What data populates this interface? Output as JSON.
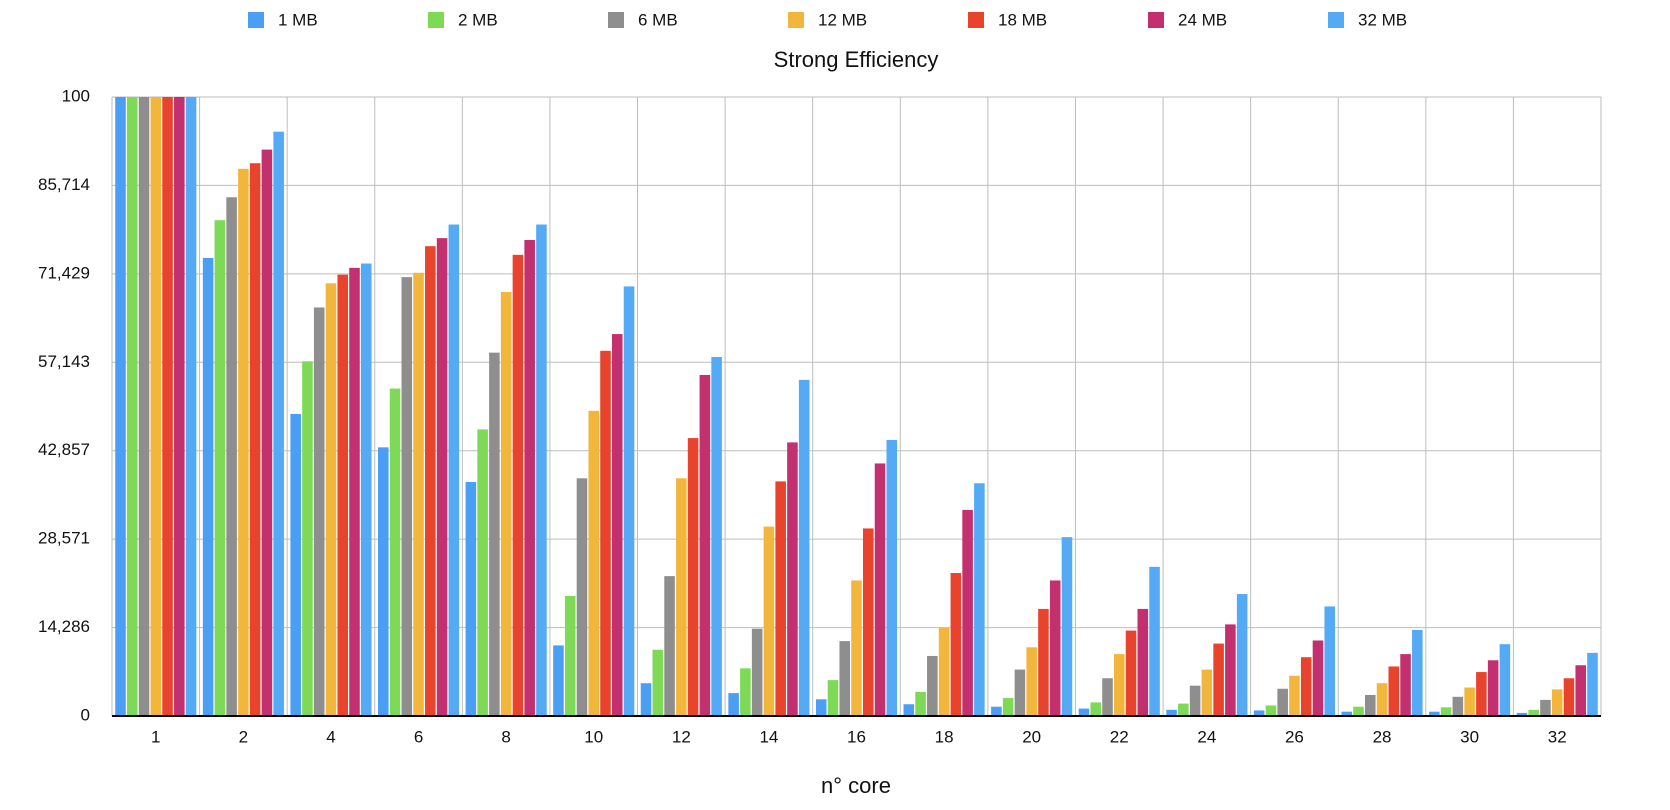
{
  "chart_data": {
    "type": "bar",
    "title": "Strong Efficiency",
    "x_label": "n° core",
    "categories": [
      "1",
      "2",
      "4",
      "6",
      "8",
      "10",
      "12",
      "14",
      "16",
      "18",
      "20",
      "22",
      "24",
      "26",
      "28",
      "30",
      "32"
    ],
    "series": [
      {
        "name": "1 MB",
        "color": "#4a9ff5",
        "values": [
          100,
          74.0,
          48.8,
          43.4,
          37.8,
          11.4,
          5.3,
          3.7,
          2.7,
          1.9,
          1.5,
          1.2,
          1.0,
          0.9,
          0.7,
          0.7,
          0.5
        ]
      },
      {
        "name": "2 MB",
        "color": "#7ed957",
        "values": [
          100,
          80.1,
          57.3,
          52.9,
          46.3,
          19.4,
          10.7,
          7.7,
          5.8,
          3.9,
          2.9,
          2.2,
          2.0,
          1.7,
          1.5,
          1.4,
          1.0
        ]
      },
      {
        "name": "6 MB",
        "color": "#8e8e8e",
        "values": [
          100,
          83.8,
          66.0,
          70.9,
          58.7,
          38.4,
          22.6,
          14.1,
          12.1,
          9.7,
          7.5,
          6.1,
          4.9,
          4.4,
          3.4,
          3.1,
          2.6
        ]
      },
      {
        "name": "12 MB",
        "color": "#f2b63d",
        "values": [
          100,
          88.4,
          69.9,
          71.6,
          68.5,
          49.3,
          38.4,
          30.6,
          21.9,
          14.3,
          11.1,
          10.0,
          7.5,
          6.5,
          5.3,
          4.6,
          4.3
        ]
      },
      {
        "name": "18 MB",
        "color": "#e8432d",
        "values": [
          100,
          89.3,
          71.3,
          75.9,
          74.5,
          59.0,
          44.9,
          37.9,
          30.3,
          23.1,
          17.3,
          13.8,
          11.7,
          9.5,
          8.0,
          7.1,
          6.1
        ]
      },
      {
        "name": "24 MB",
        "color": "#c2306f",
        "values": [
          100,
          91.5,
          72.4,
          77.2,
          76.9,
          61.7,
          55.1,
          44.2,
          40.8,
          33.3,
          21.9,
          17.3,
          14.8,
          12.2,
          10.0,
          9.0,
          8.2
        ]
      },
      {
        "name": "32 MB",
        "color": "#55aaf5",
        "values": [
          100,
          94.4,
          73.1,
          79.4,
          79.4,
          69.4,
          58.0,
          54.3,
          44.6,
          37.6,
          28.9,
          24.1,
          19.7,
          17.7,
          13.9,
          11.6,
          10.2
        ]
      }
    ],
    "ylim": [
      0,
      100
    ],
    "yticks": [
      0,
      {
        "value": 14.286,
        "label": "14,286"
      },
      {
        "value": 28.571,
        "label": "28,571"
      },
      {
        "value": 42.857,
        "label": "42,857"
      },
      {
        "value": 57.143,
        "label": "57,143"
      },
      {
        "value": 71.429,
        "label": "71,429"
      },
      {
        "value": 85.714,
        "label": "85,714"
      },
      100
    ],
    "grid": true
  }
}
